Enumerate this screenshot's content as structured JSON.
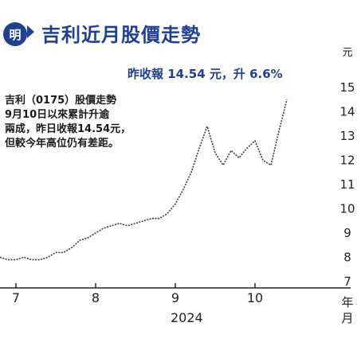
{
  "header": {
    "logo_text": "明",
    "title": "吉利近月股價走勢"
  },
  "subtitle": "昨收報 14.54 元，升 6.6%",
  "info_lines": [
    "吉利（0175）股價走勢",
    "9月10日以來累計升逾",
    "兩成，昨日收報14.54元，",
    "但較今年高位仍有差距。"
  ],
  "chart_data": {
    "type": "line",
    "title": "",
    "xlabel": "2024",
    "ylabel": "元",
    "x_unit_label": "月",
    "year_label": "2024",
    "x_unit": "年月",
    "ylim": [
      7,
      15
    ],
    "yticks": [
      7,
      8,
      9,
      10,
      11,
      12,
      13,
      14,
      15
    ],
    "xticks": [
      {
        "label": "7",
        "month": 7
      },
      {
        "label": "8",
        "month": 8
      },
      {
        "label": "9",
        "month": 9
      },
      {
        "label": "10",
        "month": 10
      }
    ],
    "series": [
      {
        "values": [
          [
            6.0,
            8.3
          ],
          [
            6.1,
            8.3
          ],
          [
            6.2,
            8.2
          ],
          [
            6.3,
            8.3
          ],
          [
            6.4,
            8.2
          ],
          [
            6.5,
            8.3
          ],
          [
            6.6,
            8.1
          ],
          [
            6.7,
            8.0
          ],
          [
            6.8,
            8.0
          ],
          [
            6.9,
            7.9
          ],
          [
            7.0,
            7.9
          ],
          [
            7.1,
            8.0
          ],
          [
            7.2,
            7.9
          ],
          [
            7.3,
            7.9
          ],
          [
            7.4,
            8.0
          ],
          [
            7.5,
            8.2
          ],
          [
            7.6,
            8.2
          ],
          [
            7.7,
            8.4
          ],
          [
            7.8,
            8.7
          ],
          [
            7.9,
            8.8
          ],
          [
            8.0,
            9.0
          ],
          [
            8.1,
            9.2
          ],
          [
            8.2,
            9.3
          ],
          [
            8.3,
            9.4
          ],
          [
            8.4,
            9.3
          ],
          [
            8.5,
            9.4
          ],
          [
            8.6,
            9.5
          ],
          [
            8.7,
            9.6
          ],
          [
            8.8,
            9.6
          ],
          [
            8.9,
            9.8
          ],
          [
            9.0,
            10.2
          ],
          [
            9.1,
            10.8
          ],
          [
            9.2,
            11.5
          ],
          [
            9.3,
            12.5
          ],
          [
            9.4,
            13.4
          ],
          [
            9.5,
            12.3
          ],
          [
            9.6,
            11.8
          ],
          [
            9.7,
            12.4
          ],
          [
            9.8,
            12.1
          ],
          [
            9.9,
            12.5
          ],
          [
            10.0,
            12.8
          ],
          [
            10.1,
            12.0
          ],
          [
            10.2,
            11.8
          ],
          [
            10.3,
            13.2
          ],
          [
            10.4,
            14.5
          ]
        ]
      }
    ],
    "grid": false
  }
}
